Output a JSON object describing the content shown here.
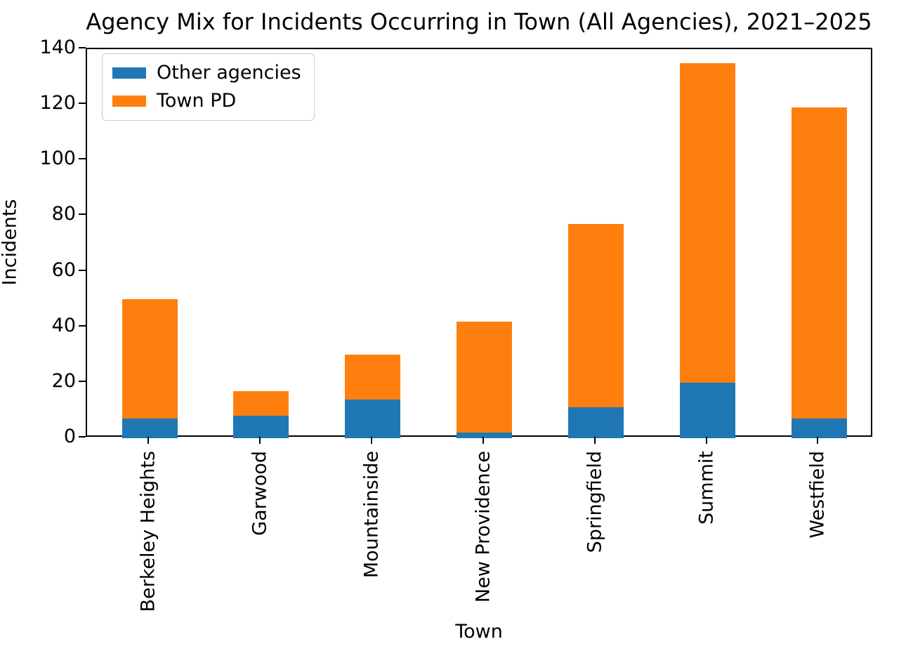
{
  "chart_data": {
    "type": "bar",
    "stacked": true,
    "title": "Agency Mix for Incidents Occurring in Town (All Agencies), 2021–2025",
    "xlabel": "Town",
    "ylabel": "Incidents",
    "categories": [
      "Berkeley Heights",
      "Garwood",
      "Mountainside",
      "New Providence",
      "Springfield",
      "Summit",
      "Westfield"
    ],
    "series": [
      {
        "name": "Other agencies",
        "color": "#1f77b4",
        "values": [
          7,
          8,
          14,
          2,
          11,
          20,
          7
        ]
      },
      {
        "name": "Town PD",
        "color": "#ff7f0e",
        "values": [
          43,
          9,
          16,
          40,
          66,
          115,
          112
        ]
      }
    ],
    "stack_totals": [
      50,
      17,
      30,
      42,
      77,
      135,
      119
    ],
    "ylim": [
      0,
      140
    ],
    "yticks": [
      0,
      20,
      40,
      60,
      80,
      100,
      120,
      140
    ],
    "legend_position": "upper left",
    "grid": false,
    "colors": {
      "text": "#000000",
      "spine": "#000000",
      "background": "#ffffff",
      "legend_border": "#cccccc"
    }
  }
}
